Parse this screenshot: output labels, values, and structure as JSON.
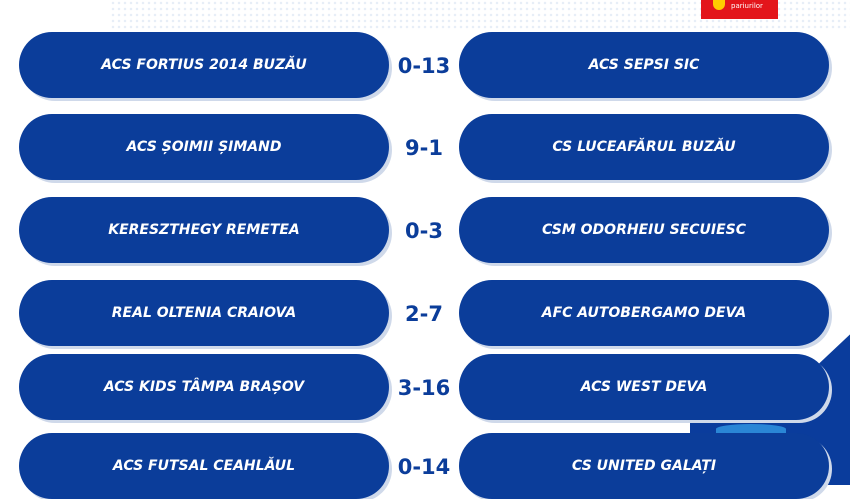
{
  "logo": {
    "text": "pariurilor"
  },
  "colors": {
    "pill": "#0b3d9a",
    "logo": "#e3151b"
  },
  "matches": [
    {
      "home": "ACS FORTIUS 2014 BUZĂU",
      "score": "0-13",
      "away": "ACS SEPSI SIC"
    },
    {
      "home": "ACS ȘOIMII ȘIMAND",
      "score": "9-1",
      "away": "CS LUCEAFĂRUL BUZĂU"
    },
    {
      "home": "KERESZTHEGY REMETEA",
      "score": "0-3",
      "away": "CSM ODORHEIU SECUIESC"
    },
    {
      "home": "REAL OLTENIA CRAIOVA",
      "score": "2-7",
      "away": "AFC AUTOBERGAMO DEVA"
    },
    {
      "home": "ACS KIDS TÂMPA BRAȘOV",
      "score": "3-16",
      "away": "ACS WEST DEVA"
    },
    {
      "home": "ACS FUTSAL CEAHLĂUL",
      "score": "0-14",
      "away": "CS UNITED GALAȚI"
    }
  ]
}
